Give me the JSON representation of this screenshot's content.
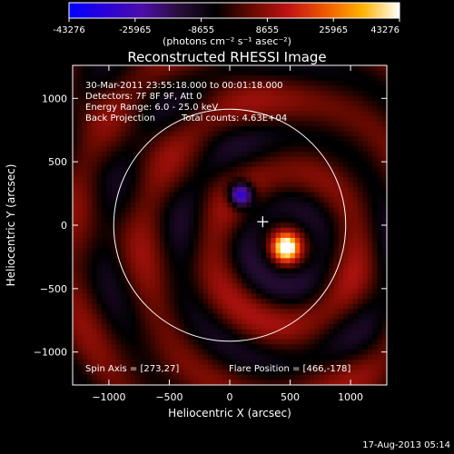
{
  "colorbar": {
    "min": -43276,
    "max": 43276,
    "tick_labels": [
      "-43276",
      "-25965",
      "-8655",
      "8655",
      "25965",
      "43276"
    ],
    "units_label": "(photons cm⁻² s⁻¹ asec⁻²)",
    "colors": [
      "#0000ff",
      "#2a00d8",
      "#4b0fa8",
      "#2a0d3a",
      "#000000",
      "#6a0a00",
      "#c21414",
      "#f05a00",
      "#ffb300",
      "#ffffff"
    ]
  },
  "chart_data": {
    "type": "heatmap",
    "title": "Reconstructed RHESSI Image",
    "xlabel": "Heliocentric X (arcsec)",
    "ylabel": "Heliocentric Y (arcsec)",
    "xlim": [
      -1300,
      1300
    ],
    "ylim": [
      -1260,
      1260
    ],
    "x_ticks": [
      -1000,
      -500,
      0,
      500,
      1000
    ],
    "y_ticks": [
      -1000,
      -500,
      0,
      500,
      1000
    ],
    "x_tick_labels": [
      "−1000",
      "−500",
      "0",
      "500",
      "1000"
    ],
    "y_tick_labels": [
      "−1000",
      "−500",
      "0",
      "500",
      "1000"
    ],
    "solar_disk_radius": 960,
    "spin_axis": [
      273,
      27
    ],
    "flare_position": [
      466,
      -178
    ],
    "features": [
      {
        "name": "bright-source",
        "x": 466,
        "y": -178,
        "value": 43276
      },
      {
        "name": "negative-source",
        "x": 90,
        "y": 240,
        "value": -43276
      }
    ],
    "annotations": {
      "time_range": "30-Mar-2011 23:55:18.000 to 00:01:18.000",
      "detectors": "Detectors: 7F 8F 9F, Att 0",
      "energy_range": "Energy Range: 6.0 - 25.0 keV",
      "method": "Back Projection",
      "total_counts": "Total counts: 4.63E+04",
      "spin_axis_label": "Spin Axis = [273,27]",
      "flare_position_label": "Flare Position = [466,-178]"
    }
  },
  "footer": {
    "timestamp": "17-Aug-2013 05:14"
  }
}
